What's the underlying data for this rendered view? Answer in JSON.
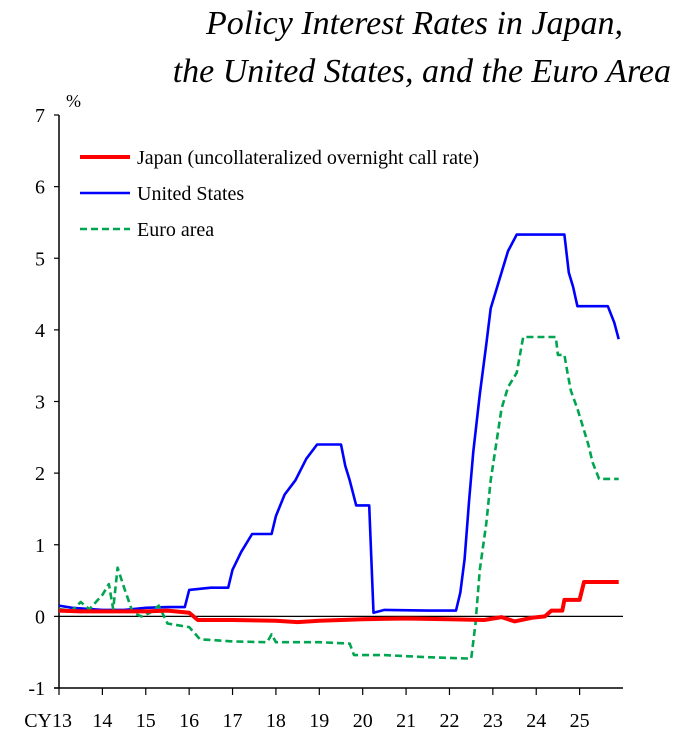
{
  "chart_data": {
    "type": "line",
    "title_lines": [
      "Policy Interest Rates in Japan,",
      "the United States, and the Euro Area"
    ],
    "ylabel": "%",
    "ylim": [
      -1,
      7
    ],
    "yticks": [
      -1,
      0,
      1,
      2,
      3,
      4,
      5,
      6,
      7
    ],
    "xlim": [
      2013,
      2026
    ],
    "xtick_labels": [
      "CY13",
      "14",
      "15",
      "16",
      "17",
      "18",
      "19",
      "20",
      "21",
      "22",
      "23",
      "24",
      "25"
    ],
    "legend_position": "top-left",
    "series": [
      {
        "name": "Japan (uncollateralized overnight call rate)",
        "color": "#ff0000",
        "style": "solid",
        "points": [
          [
            2013,
            0.08
          ],
          [
            2013.5,
            0.07
          ],
          [
            2014,
            0.07
          ],
          [
            2015,
            0.07
          ],
          [
            2015.5,
            0.08
          ],
          [
            2016.0,
            0.05
          ],
          [
            2016.1,
            0.0
          ],
          [
            2016.2,
            -0.05
          ],
          [
            2017,
            -0.05
          ],
          [
            2018,
            -0.06
          ],
          [
            2018.5,
            -0.08
          ],
          [
            2019,
            -0.06
          ],
          [
            2020,
            -0.04
          ],
          [
            2021,
            -0.03
          ],
          [
            2022,
            -0.04
          ],
          [
            2022.8,
            -0.05
          ],
          [
            2023.2,
            -0.01
          ],
          [
            2023.5,
            -0.07
          ],
          [
            2023.9,
            -0.02
          ],
          [
            2024.2,
            0.0
          ],
          [
            2024.35,
            0.08
          ],
          [
            2024.6,
            0.08
          ],
          [
            2024.65,
            0.23
          ],
          [
            2025.0,
            0.23
          ],
          [
            2025.1,
            0.48
          ],
          [
            2025.9,
            0.48
          ]
        ]
      },
      {
        "name": "United States",
        "color": "#0000ff",
        "style": "solid",
        "points": [
          [
            2013,
            0.15
          ],
          [
            2013.3,
            0.12
          ],
          [
            2014,
            0.09
          ],
          [
            2014.5,
            0.09
          ],
          [
            2015,
            0.12
          ],
          [
            2015.5,
            0.13
          ],
          [
            2015.9,
            0.13
          ],
          [
            2016.0,
            0.37
          ],
          [
            2016.5,
            0.4
          ],
          [
            2016.9,
            0.4
          ],
          [
            2017.0,
            0.65
          ],
          [
            2017.2,
            0.9
          ],
          [
            2017.45,
            1.15
          ],
          [
            2017.9,
            1.15
          ],
          [
            2018.0,
            1.4
          ],
          [
            2018.2,
            1.7
          ],
          [
            2018.45,
            1.9
          ],
          [
            2018.7,
            2.2
          ],
          [
            2018.95,
            2.4
          ],
          [
            2019.5,
            2.4
          ],
          [
            2019.6,
            2.1
          ],
          [
            2019.7,
            1.9
          ],
          [
            2019.85,
            1.55
          ],
          [
            2020.15,
            1.55
          ],
          [
            2020.25,
            0.05
          ],
          [
            2020.5,
            0.09
          ],
          [
            2021.5,
            0.08
          ],
          [
            2022.15,
            0.08
          ],
          [
            2022.25,
            0.33
          ],
          [
            2022.35,
            0.8
          ],
          [
            2022.45,
            1.6
          ],
          [
            2022.55,
            2.3
          ],
          [
            2022.7,
            3.1
          ],
          [
            2022.85,
            3.8
          ],
          [
            2022.95,
            4.3
          ],
          [
            2023.1,
            4.6
          ],
          [
            2023.2,
            4.8
          ],
          [
            2023.35,
            5.1
          ],
          [
            2023.55,
            5.33
          ],
          [
            2024.65,
            5.33
          ],
          [
            2024.75,
            4.8
          ],
          [
            2024.85,
            4.6
          ],
          [
            2024.95,
            4.33
          ],
          [
            2025.65,
            4.33
          ],
          [
            2025.8,
            4.1
          ],
          [
            2025.9,
            3.87
          ]
        ]
      },
      {
        "name": "Euro area",
        "color": "#00a550",
        "style": "dashed",
        "points": [
          [
            2013,
            0.1
          ],
          [
            2013.3,
            0.08
          ],
          [
            2013.5,
            0.2
          ],
          [
            2013.7,
            0.1
          ],
          [
            2014.0,
            0.3
          ],
          [
            2014.15,
            0.45
          ],
          [
            2014.25,
            0.1
          ],
          [
            2014.35,
            0.68
          ],
          [
            2014.5,
            0.4
          ],
          [
            2014.7,
            0.05
          ],
          [
            2014.9,
            0.0
          ],
          [
            2015.1,
            0.05
          ],
          [
            2015.3,
            0.15
          ],
          [
            2015.5,
            -0.1
          ],
          [
            2015.8,
            -0.13
          ],
          [
            2016.0,
            -0.15
          ],
          [
            2016.25,
            -0.32
          ],
          [
            2017.0,
            -0.35
          ],
          [
            2017.8,
            -0.36
          ],
          [
            2017.9,
            -0.25
          ],
          [
            2018.0,
            -0.36
          ],
          [
            2019.0,
            -0.36
          ],
          [
            2019.7,
            -0.38
          ],
          [
            2019.8,
            -0.54
          ],
          [
            2020.5,
            -0.54
          ],
          [
            2021.5,
            -0.57
          ],
          [
            2022.5,
            -0.59
          ],
          [
            2022.6,
            -0.1
          ],
          [
            2022.7,
            0.65
          ],
          [
            2022.85,
            1.3
          ],
          [
            2022.95,
            1.9
          ],
          [
            2023.1,
            2.5
          ],
          [
            2023.2,
            2.9
          ],
          [
            2023.35,
            3.2
          ],
          [
            2023.55,
            3.4
          ],
          [
            2023.7,
            3.9
          ],
          [
            2024.45,
            3.9
          ],
          [
            2024.5,
            3.65
          ],
          [
            2024.65,
            3.65
          ],
          [
            2024.72,
            3.4
          ],
          [
            2024.8,
            3.15
          ],
          [
            2024.95,
            2.9
          ],
          [
            2025.05,
            2.7
          ],
          [
            2025.2,
            2.4
          ],
          [
            2025.3,
            2.15
          ],
          [
            2025.45,
            1.92
          ],
          [
            2025.9,
            1.92
          ]
        ]
      }
    ]
  }
}
